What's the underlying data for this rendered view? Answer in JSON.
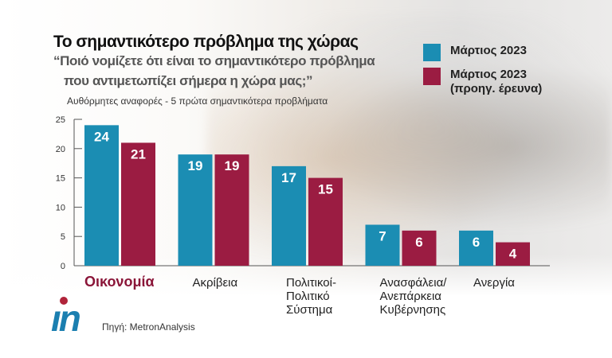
{
  "title": "Το σημαντικότερο πρόβλημα της χώρας",
  "question_line1": "“Ποιό νομίζετε ότι είναι το σημαντικότερο πρόβλημα",
  "question_line2": "που αντιμετωπίζει σήμερα η χώρα μας;”",
  "note": "Αυθόρμητες αναφορές - 5 πρώτα σημαντικότερα προβλήματα",
  "source": "Πηγή: MetronAnalysis",
  "logo_text": "in",
  "chart_data": {
    "type": "bar",
    "categories": [
      [
        "Οικονομία"
      ],
      [
        "Ακρίβεια"
      ],
      [
        "Πολιτικοί-",
        "Πολιτικό",
        "Σύστημα"
      ],
      [
        "Ανασφάλεια/",
        "Ανεπάρκεια",
        "Κυβέρνησης"
      ],
      [
        "Ανεργία"
      ]
    ],
    "series": [
      {
        "name": "Μάρτιος 2023",
        "color": "#1b8db3",
        "values": [
          24,
          19,
          17,
          7,
          6
        ]
      },
      {
        "name": "Μάρτιος 2023 (προηγ. έρευνα)",
        "color": "#9b1c42",
        "values": [
          21,
          19,
          15,
          6,
          4
        ]
      }
    ],
    "yticks": [
      0,
      5,
      10,
      15,
      20,
      25
    ],
    "ylim": [
      0,
      25
    ],
    "highlight_category_color": "#8a1538",
    "legend": "top-right"
  }
}
